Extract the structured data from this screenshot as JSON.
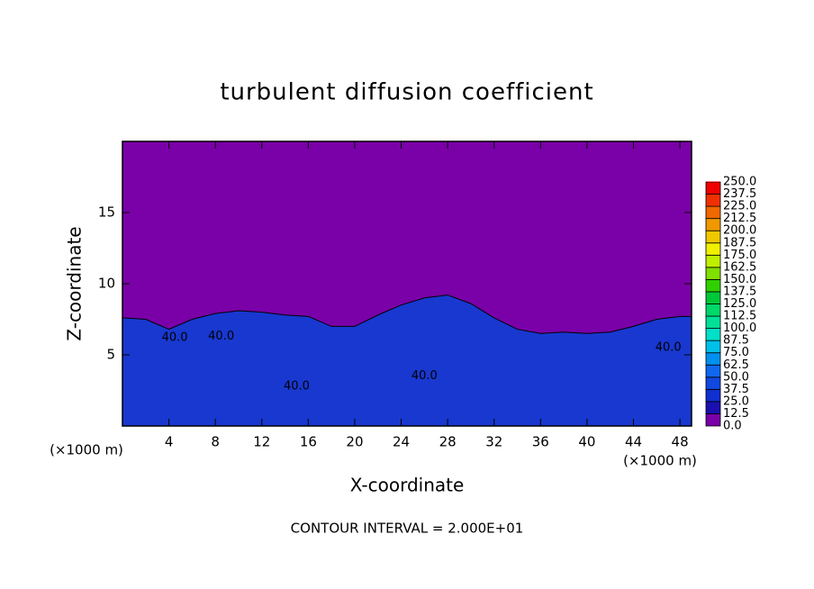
{
  "chart_data": {
    "type": "contour",
    "title": "turbulent diffusion coefficient",
    "xlabel": "X-coordinate",
    "ylabel": "Z-coordinate",
    "xunit": "(×1000 m)",
    "footer": "CONTOUR INTERVAL = 2.000E+01",
    "xlim": [
      0,
      49
    ],
    "ylim": [
      0,
      20
    ],
    "xticks": [
      4,
      8,
      12,
      16,
      20,
      24,
      28,
      32,
      36,
      40,
      44,
      48
    ],
    "yticks": [
      5,
      10,
      15
    ],
    "background_color": "#7a00a8",
    "field": {
      "color": "#1838d0",
      "x": [
        0,
        2,
        4,
        6,
        8,
        10,
        12,
        14,
        16,
        18,
        20,
        22,
        24,
        26,
        28,
        30,
        32,
        34,
        36,
        38,
        40,
        42,
        44,
        46,
        48,
        49
      ],
      "z": [
        7.6,
        7.5,
        6.8,
        7.5,
        7.9,
        8.1,
        8.0,
        7.8,
        7.7,
        7.0,
        7.0,
        7.8,
        8.5,
        9.0,
        9.2,
        8.6,
        7.6,
        6.8,
        6.5,
        6.6,
        6.5,
        6.6,
        7.0,
        7.5,
        7.7,
        7.7
      ]
    },
    "contour_labels": [
      {
        "text": "40.0",
        "x": 4.5,
        "z": 6.2
      },
      {
        "text": "40.0",
        "x": 8.5,
        "z": 6.3
      },
      {
        "text": "40.0",
        "x": 15.0,
        "z": 2.8
      },
      {
        "text": "40.0",
        "x": 26.0,
        "z": 3.5
      },
      {
        "text": "40.0",
        "x": 47.0,
        "z": 5.5
      }
    ],
    "colorbar": {
      "levels": [
        {
          "value": 0,
          "label": "0.0"
        },
        {
          "value": 12.5,
          "label": "12.5"
        },
        {
          "value": 25,
          "label": "25.0"
        },
        {
          "value": 37.5,
          "label": "37.5"
        },
        {
          "value": 50,
          "label": "50.0"
        },
        {
          "value": 62.5,
          "label": "62.5"
        },
        {
          "value": 75,
          "label": "75.0"
        },
        {
          "value": 87.5,
          "label": "87.5"
        },
        {
          "value": 100,
          "label": "100.0"
        },
        {
          "value": 112.5,
          "label": "112.5"
        },
        {
          "value": 125,
          "label": "125.0"
        },
        {
          "value": 137.5,
          "label": "137.5"
        },
        {
          "value": 150,
          "label": "150.0"
        },
        {
          "value": 162.5,
          "label": "162.5"
        },
        {
          "value": 175,
          "label": "175.0"
        },
        {
          "value": 187.5,
          "label": "187.5"
        },
        {
          "value": 200,
          "label": "200.0"
        },
        {
          "value": 212.5,
          "label": "212.5"
        },
        {
          "value": 225,
          "label": "225.0"
        },
        {
          "value": 237.5,
          "label": "237.5"
        },
        {
          "value": 250,
          "label": "250.0"
        }
      ],
      "colors": [
        "#7a00a8",
        "#1a10b0",
        "#1030d0",
        "#1048e0",
        "#1068f0",
        "#0090f0",
        "#00c0e8",
        "#00e0c8",
        "#00e098",
        "#00d868",
        "#00c838",
        "#30d000",
        "#80e000",
        "#c0f000",
        "#f0f000",
        "#f0c800",
        "#f09800",
        "#f06800",
        "#f03000",
        "#f00000",
        "#f08888"
      ]
    }
  }
}
